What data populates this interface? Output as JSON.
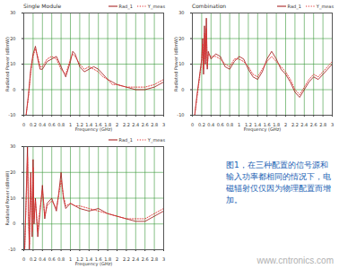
{
  "chart_data": [
    {
      "type": "line",
      "title": "Single Module",
      "x_label": "Frequency (GHz)",
      "y_label": "Radiated Power (dBmW)",
      "xlim": [
        0,
        3
      ],
      "ylim": [
        -10,
        30
      ],
      "xticks": [
        0,
        0.2,
        0.4,
        0.6,
        0.8,
        1,
        1.2,
        1.4,
        1.6,
        1.8,
        2,
        2.2,
        2.4,
        2.6,
        2.8,
        3
      ],
      "yticks": [
        -10,
        0,
        10,
        20,
        30
      ],
      "grid": true,
      "x": [
        0.05,
        0.1,
        0.15,
        0.2,
        0.25,
        0.3,
        0.35,
        0.4,
        0.5,
        0.6,
        0.7,
        0.8,
        0.9,
        1.0,
        1.05,
        1.1,
        1.2,
        1.3,
        1.4,
        1.5,
        1.6,
        1.7,
        1.8,
        1.9,
        2.0,
        2.2,
        2.4,
        2.6,
        2.8,
        3.0
      ],
      "series": [
        {
          "name": "Rad_1",
          "color": "#a01010",
          "line_style": "solid",
          "values": [
            -10,
            -2,
            8,
            14,
            17,
            12,
            8,
            8,
            11,
            12,
            13,
            9,
            5,
            11,
            15,
            14,
            9,
            7,
            8,
            9,
            8,
            6,
            4,
            3,
            2,
            1,
            0,
            0,
            1,
            3
          ]
        },
        {
          "name": "Y_meas",
          "color": "#e03030",
          "line_style": "dotted",
          "values": [
            -10,
            -3,
            7,
            13,
            16,
            13,
            9,
            9,
            12,
            13,
            12,
            8,
            6,
            12,
            14,
            13,
            10,
            8,
            9,
            8,
            7,
            5,
            4,
            2,
            2,
            1,
            1,
            1,
            2,
            4
          ]
        }
      ]
    },
    {
      "type": "line",
      "title": "Combination",
      "x_label": "Frequency (GHz)",
      "y_label": "Radiated Power (dBmW)",
      "xlim": [
        0,
        3
      ],
      "ylim": [
        -10,
        30
      ],
      "xticks": [
        0,
        0.2,
        0.4,
        0.6,
        0.8,
        1,
        1.2,
        1.4,
        1.6,
        1.8,
        2,
        2.2,
        2.4,
        2.6,
        2.8,
        3
      ],
      "yticks": [
        -10,
        0,
        10,
        20,
        30
      ],
      "grid": true,
      "x": [
        0.05,
        0.1,
        0.15,
        0.2,
        0.22,
        0.24,
        0.26,
        0.28,
        0.3,
        0.32,
        0.34,
        0.4,
        0.5,
        0.6,
        0.7,
        0.8,
        0.9,
        1.0,
        1.1,
        1.2,
        1.3,
        1.4,
        1.5,
        1.6,
        1.7,
        1.8,
        1.9,
        2.0,
        2.1,
        2.2,
        2.3,
        2.4,
        2.5,
        2.6,
        2.7,
        2.8,
        2.9,
        3.0
      ],
      "series": [
        {
          "name": "Rad_1",
          "color": "#a01010",
          "line_style": "solid",
          "values": [
            -10,
            -2,
            5,
            12,
            20,
            6,
            25,
            10,
            28,
            8,
            15,
            12,
            14,
            13,
            9,
            8,
            11,
            13,
            12,
            8,
            5,
            4,
            7,
            12,
            15,
            12,
            8,
            6,
            3,
            -1,
            -3,
            0,
            3,
            5,
            4,
            6,
            8,
            10
          ]
        },
        {
          "name": "Y_meas",
          "color": "#e03030",
          "line_style": "dotted",
          "values": [
            -10,
            -3,
            4,
            11,
            18,
            8,
            22,
            12,
            24,
            9,
            14,
            13,
            13,
            12,
            10,
            9,
            12,
            12,
            11,
            9,
            6,
            5,
            8,
            11,
            13,
            11,
            9,
            7,
            4,
            0,
            -2,
            1,
            4,
            6,
            5,
            7,
            9,
            11
          ]
        }
      ]
    },
    {
      "type": "line",
      "x_label": "Frequency (GHz)",
      "y_label": "Radiated Power (dBmW)",
      "xlim": [
        0,
        3
      ],
      "ylim": [
        -10,
        30
      ],
      "xticks": [
        0,
        0.2,
        0.4,
        0.6,
        0.8,
        1,
        1.2,
        1.4,
        1.6,
        1.8,
        2,
        2.2,
        2.4,
        2.6,
        2.8,
        3
      ],
      "yticks": [
        -10,
        0,
        10,
        20,
        30
      ],
      "grid": true,
      "x": [
        0.02,
        0.05,
        0.08,
        0.1,
        0.12,
        0.15,
        0.18,
        0.2,
        0.22,
        0.25,
        0.3,
        0.35,
        0.4,
        0.45,
        0.5,
        0.6,
        0.7,
        0.75,
        0.8,
        0.85,
        0.9,
        1.0,
        1.1,
        1.2,
        1.4,
        1.6,
        1.8,
        2.0,
        2.2,
        2.4,
        2.6,
        2.8,
        3.0
      ],
      "series": [
        {
          "name": "Rad_1",
          "color": "#a01010",
          "line_style": "solid",
          "values": [
            -10,
            10,
            30,
            5,
            -10,
            20,
            -5,
            25,
            0,
            10,
            -5,
            5,
            15,
            2,
            8,
            10,
            5,
            12,
            20,
            10,
            6,
            8,
            7,
            6,
            5,
            6,
            4,
            3,
            2,
            1,
            1,
            3,
            5
          ]
        },
        {
          "name": "Y_meas",
          "color": "#e03030",
          "line_style": "dotted",
          "values": [
            -10,
            8,
            26,
            6,
            -8,
            18,
            -3,
            22,
            2,
            9,
            -3,
            6,
            13,
            3,
            7,
            9,
            6,
            11,
            17,
            11,
            7,
            8,
            7,
            7,
            6,
            5,
            4,
            3,
            2,
            2,
            2,
            4,
            6
          ]
        }
      ]
    }
  ],
  "caption": "图1，在三种配置的信号源和输入功率都相同的情况下，电磁辐射仅仅因为物理配置而增加。",
  "watermark": "www.cntronics.com"
}
